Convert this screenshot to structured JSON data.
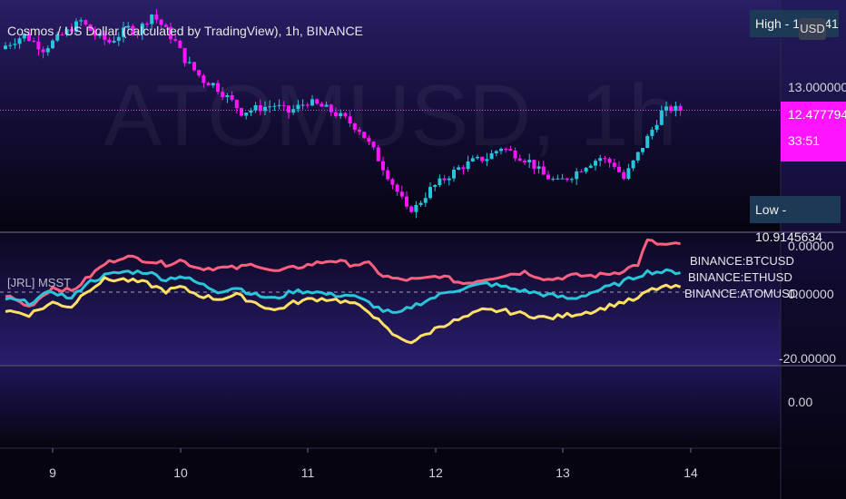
{
  "header": {
    "title": "Cosmos / US Dollar (calculated by TradingView), 1h, BINANCE",
    "watermark": "ATOMUSD, 1h",
    "high_badge": "High - 14.0341",
    "currency_badge": "USD",
    "price_badge": "12.4777943",
    "countdown": "33:51",
    "low_badge": "Low - 10.9145634"
  },
  "price_axis": [
    "13.0000000"
  ],
  "indicator": {
    "label": "[JRL] MSST",
    "legend": [
      "BINANCE:BTCUSD",
      "BINANCE:ETHUSD",
      "BINANCE:ATOMUSD"
    ],
    "axis": [
      "0.00000",
      "0.00000",
      "-20.00000"
    ]
  },
  "sub_panel": {
    "axis": [
      "0.00"
    ]
  },
  "time_axis": [
    "9",
    "10",
    "11",
    "12",
    "13",
    "14"
  ],
  "colors": {
    "background": "#0a0618",
    "up_candle": "#26c6da",
    "down_candle": "#ff14ff",
    "btc_line": "#ff5f7e",
    "eth_line": "#29c5d8",
    "atom_line": "#ffe066",
    "price_line": "#d94fd9",
    "badge": "#1c3a56"
  },
  "chart_data": [
    {
      "type": "candlestick",
      "title": "Cosmos / US Dollar (calculated by TradingView), 1h, BINANCE",
      "ylim": [
        10.75,
        14.05
      ],
      "current_price": 12.4777943,
      "high": 14.0341,
      "low": 10.9145634,
      "close_path": [
        [
          0,
          13.4
        ],
        [
          4,
          13.55
        ],
        [
          8,
          13.35
        ],
        [
          12,
          13.55
        ],
        [
          16,
          13.75
        ],
        [
          19,
          13.55
        ],
        [
          22,
          13.45
        ],
        [
          26,
          13.65
        ],
        [
          28,
          13.6
        ],
        [
          31,
          13.85
        ],
        [
          33,
          13.7
        ],
        [
          36,
          13.45
        ],
        [
          38,
          13.2
        ],
        [
          40,
          13.05
        ],
        [
          42,
          12.9
        ],
        [
          44,
          12.85
        ],
        [
          48,
          12.6
        ],
        [
          50,
          12.45
        ],
        [
          53,
          12.5
        ],
        [
          57,
          12.55
        ],
        [
          60,
          12.45
        ],
        [
          64,
          12.6
        ],
        [
          68,
          12.5
        ],
        [
          72,
          12.35
        ],
        [
          75,
          12.2
        ],
        [
          78,
          11.9
        ],
        [
          81,
          11.55
        ],
        [
          84,
          11.2
        ],
        [
          85,
          11.05
        ],
        [
          87,
          11.1
        ],
        [
          90,
          11.35
        ],
        [
          93,
          11.5
        ],
        [
          96,
          11.65
        ],
        [
          99,
          11.75
        ],
        [
          102,
          11.8
        ],
        [
          105,
          11.95
        ],
        [
          108,
          11.85
        ],
        [
          111,
          11.75
        ],
        [
          114,
          11.55
        ],
        [
          117,
          11.45
        ],
        [
          120,
          11.55
        ],
        [
          123,
          11.7
        ],
        [
          126,
          11.8
        ],
        [
          129,
          11.7
        ],
        [
          131,
          11.5
        ],
        [
          134,
          11.85
        ],
        [
          137,
          12.2
        ],
        [
          139,
          12.45
        ],
        [
          141,
          12.5
        ],
        [
          143,
          12.48
        ]
      ]
    },
    {
      "type": "line",
      "title": "[JRL] MSST",
      "ylim": [
        -24,
        10
      ],
      "series": [
        {
          "name": "BINANCE:BTCUSD",
          "points": [
            [
              0,
              -6
            ],
            [
              5,
              -9
            ],
            [
              10,
              -4
            ],
            [
              14,
              -5
            ],
            [
              17,
              -2
            ],
            [
              21,
              2
            ],
            [
              25,
              4
            ],
            [
              30,
              3
            ],
            [
              34,
              2
            ],
            [
              37,
              3
            ],
            [
              41,
              1
            ],
            [
              45,
              1
            ],
            [
              49,
              1
            ],
            [
              53,
              2
            ],
            [
              57,
              0
            ],
            [
              61,
              1
            ],
            [
              65,
              2
            ],
            [
              69,
              3
            ],
            [
              73,
              2
            ],
            [
              77,
              2
            ],
            [
              80,
              -1
            ],
            [
              83,
              -2
            ],
            [
              88,
              -2
            ],
            [
              92,
              -1
            ],
            [
              97,
              -3
            ],
            [
              101,
              -2
            ],
            [
              105,
              -1
            ],
            [
              110,
              0
            ],
            [
              115,
              -2
            ],
            [
              120,
              -1
            ],
            [
              125,
              -1
            ],
            [
              130,
              0
            ],
            [
              134,
              2
            ],
            [
              136,
              8
            ],
            [
              139,
              7
            ],
            [
              143,
              7
            ]
          ]
        },
        {
          "name": "BINANCE:ETHUSD",
          "points": [
            [
              0,
              -7
            ],
            [
              5,
              -8
            ],
            [
              10,
              -5
            ],
            [
              14,
              -7
            ],
            [
              17,
              -3
            ],
            [
              21,
              -1
            ],
            [
              25,
              0
            ],
            [
              30,
              0
            ],
            [
              34,
              -2
            ],
            [
              37,
              -1
            ],
            [
              41,
              -3
            ],
            [
              45,
              -5
            ],
            [
              49,
              -4
            ],
            [
              53,
              -6
            ],
            [
              57,
              -7
            ],
            [
              61,
              -5
            ],
            [
              65,
              -5
            ],
            [
              69,
              -6
            ],
            [
              73,
              -6
            ],
            [
              77,
              -8
            ],
            [
              80,
              -10
            ],
            [
              83,
              -11
            ],
            [
              86,
              -9
            ],
            [
              90,
              -7
            ],
            [
              94,
              -5
            ],
            [
              98,
              -4
            ],
            [
              102,
              -3
            ],
            [
              106,
              -4
            ],
            [
              110,
              -5
            ],
            [
              115,
              -6
            ],
            [
              120,
              -7
            ],
            [
              125,
              -5
            ],
            [
              130,
              -3
            ],
            [
              134,
              -1
            ],
            [
              136,
              0
            ],
            [
              139,
              0
            ],
            [
              143,
              0
            ]
          ]
        },
        {
          "name": "BINANCE:ATOMUSD",
          "points": [
            [
              0,
              -10
            ],
            [
              5,
              -11
            ],
            [
              10,
              -8
            ],
            [
              14,
              -9
            ],
            [
              17,
              -5
            ],
            [
              21,
              -2
            ],
            [
              25,
              -2
            ],
            [
              30,
              -3
            ],
            [
              34,
              -5
            ],
            [
              37,
              -4
            ],
            [
              41,
              -6
            ],
            [
              45,
              -7
            ],
            [
              49,
              -6
            ],
            [
              53,
              -8
            ],
            [
              57,
              -10
            ],
            [
              61,
              -8
            ],
            [
              65,
              -7
            ],
            [
              69,
              -7
            ],
            [
              73,
              -8
            ],
            [
              77,
              -10
            ],
            [
              80,
              -14
            ],
            [
              83,
              -17
            ],
            [
              86,
              -18
            ],
            [
              88,
              -17
            ],
            [
              92,
              -14
            ],
            [
              97,
              -12
            ],
            [
              101,
              -10
            ],
            [
              105,
              -10
            ],
            [
              110,
              -11
            ],
            [
              115,
              -12
            ],
            [
              120,
              -11
            ],
            [
              125,
              -10
            ],
            [
              130,
              -8
            ],
            [
              134,
              -7
            ],
            [
              136,
              -5
            ],
            [
              139,
              -4
            ],
            [
              143,
              -4
            ]
          ]
        }
      ]
    }
  ]
}
